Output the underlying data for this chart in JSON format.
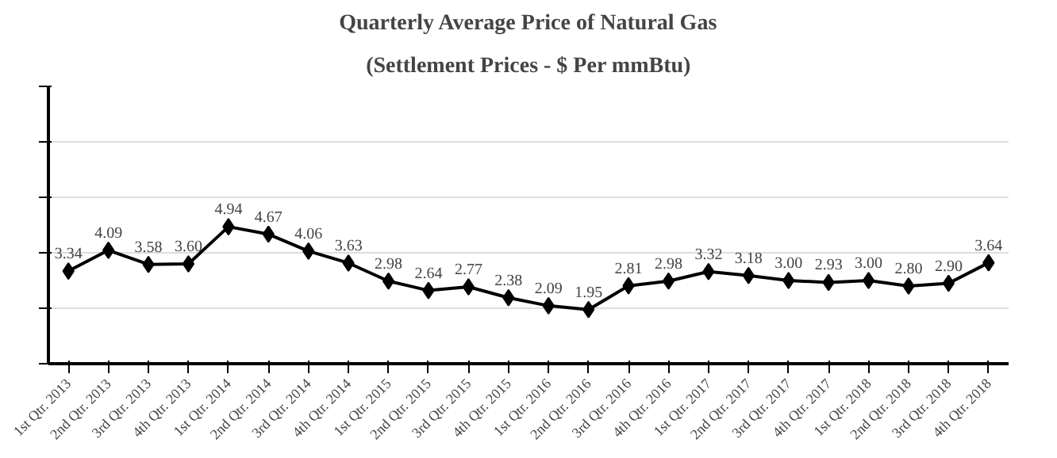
{
  "chart_data": {
    "type": "line",
    "title": "Quarterly Average Price of Natural Gas",
    "subtitle": "(Settlement Prices - $ Per mmBtu)",
    "categories": [
      "1st Qtr. 2013",
      "2nd Qtr. 2013",
      "3rd Qtr. 2013",
      "4th Qtr. 2013",
      "1st Qtr. 2014",
      "2nd Qtr. 2014",
      "3rd Qtr. 2014",
      "4th Qtr. 2014",
      "1st Qtr. 2015",
      "2nd Qtr. 2015",
      "3rd Qtr. 2015",
      "4th Qtr. 2015",
      "1st Qtr. 2016",
      "2nd Qtr. 2016",
      "3rd Qtr. 2016",
      "4th Qtr. 2016",
      "1st Qtr. 2017",
      "2nd Qtr. 2017",
      "3rd Qtr. 2017",
      "4th Qtr. 2017",
      "1st Qtr. 2018",
      "2nd Qtr. 2018",
      "3rd Qtr. 2018",
      "4th Qtr. 2018"
    ],
    "series": [
      {
        "color": "#000000",
        "values": [
          3.34,
          4.09,
          3.58,
          3.6,
          4.94,
          4.67,
          4.06,
          3.63,
          2.98,
          2.64,
          2.77,
          2.38,
          2.09,
          1.95,
          2.81,
          2.98,
          3.32,
          3.18,
          3.0,
          2.93,
          3.0,
          2.8,
          2.9,
          3.64
        ],
        "value_labels": [
          "3.34",
          "4.09",
          "3.58",
          "3.60",
          "4.94",
          "4.67",
          "4.06",
          "3.63",
          "2.98",
          "2.64",
          "2.77",
          "2.38",
          "2.09",
          "1.95",
          "2.81",
          "2.98",
          "3.32",
          "3.18",
          "3.00",
          "2.93",
          "3.00",
          "2.80",
          "2.90",
          "3.64"
        ]
      }
    ],
    "ylim": [
      0,
      10
    ],
    "yticks": [
      {
        "value": 0,
        "label": null
      },
      {
        "value": 2,
        "label": null
      },
      {
        "value": 4,
        "label": null
      },
      {
        "value": 6,
        "label": null
      },
      {
        "value": 8,
        "label": null
      },
      {
        "value": 10,
        "label": null
      }
    ],
    "tick_labels": "x",
    "grid": "y",
    "marker": "diamond",
    "line_style": "solid"
  }
}
